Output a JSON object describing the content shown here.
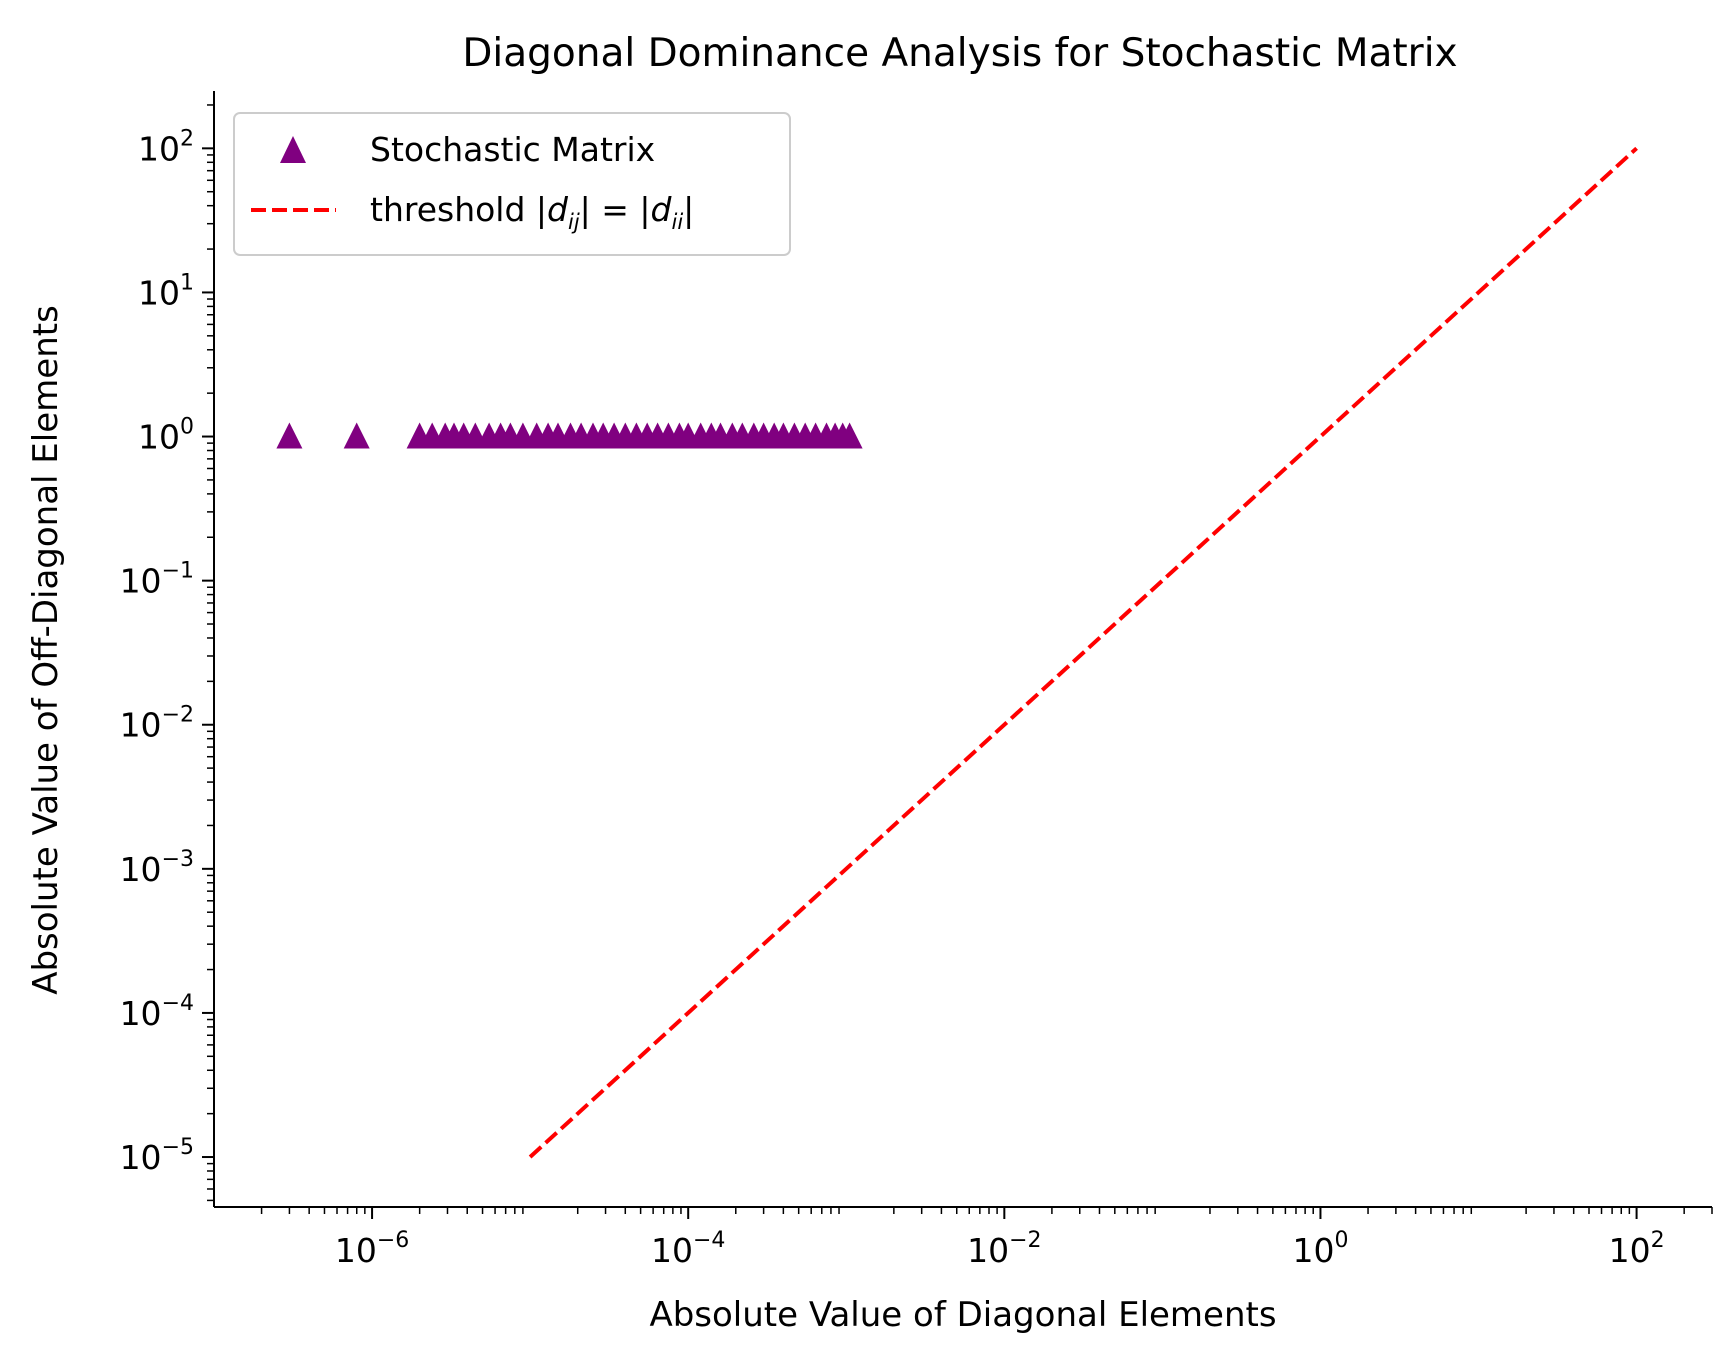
{
  "chart_data": {
    "type": "scatter",
    "title": "Diagonal Dominance Analysis for Stochastic Matrix",
    "xlabel": "Absolute Value of Diagonal Elements",
    "ylabel": "Absolute Value of Off-Diagonal Elements",
    "x_scale": "log",
    "y_scale": "log",
    "xlim": [
      1e-07,
      300
    ],
    "ylim": [
      4.5e-06,
      250
    ],
    "x_ticks": [
      {
        "value": 1e-06,
        "base": "10",
        "exp": "−6"
      },
      {
        "value": 0.0001,
        "base": "10",
        "exp": "−4"
      },
      {
        "value": 0.01,
        "base": "10",
        "exp": "−2"
      },
      {
        "value": 1,
        "base": "10",
        "exp": "0"
      },
      {
        "value": 100,
        "base": "10",
        "exp": "2"
      }
    ],
    "y_ticks": [
      {
        "value": 1e-05,
        "base": "10",
        "exp": "−5"
      },
      {
        "value": 0.0001,
        "base": "10",
        "exp": "−4"
      },
      {
        "value": 0.001,
        "base": "10",
        "exp": "−3"
      },
      {
        "value": 0.01,
        "base": "10",
        "exp": "−2"
      },
      {
        "value": 0.1,
        "base": "10",
        "exp": "−1"
      },
      {
        "value": 1,
        "base": "10",
        "exp": "0"
      },
      {
        "value": 10,
        "base": "10",
        "exp": "1"
      },
      {
        "value": 100,
        "base": "10",
        "exp": "2"
      }
    ],
    "legend_position": "top-left",
    "grid": false,
    "series": [
      {
        "name": "Stochastic Matrix",
        "kind": "scatter",
        "marker": "triangle",
        "color": "#800080",
        "x": [
          3e-07,
          8e-07,
          2e-06,
          2.4e-06,
          2.9e-06,
          3.3e-06,
          3.8e-06,
          4.5e-06,
          5.5e-06,
          6.5e-06,
          7.5e-06,
          9e-06,
          1.1e-05,
          1.3e-05,
          1.5e-05,
          1.8e-05,
          2.1e-05,
          2.5e-05,
          2.9e-05,
          3.4e-05,
          4e-05,
          4.7e-05,
          5.5e-05,
          6.4e-05,
          7.5e-05,
          8.8e-05,
          0.0001,
          0.00012,
          0.00014,
          0.00016,
          0.00019,
          0.00022,
          0.00026,
          0.0003,
          0.00035,
          0.0004,
          0.00047,
          0.00055,
          0.00064,
          0.00075,
          0.00085,
          0.00095,
          0.00105
        ],
        "y": [
          1,
          1,
          1,
          1,
          1,
          1,
          1,
          1,
          1,
          1,
          1,
          1,
          1,
          1,
          1,
          1,
          1,
          1,
          1,
          1,
          1,
          1,
          1,
          1,
          1,
          1,
          1,
          1,
          1,
          1,
          1,
          1,
          1,
          1,
          1,
          1,
          1,
          1,
          1,
          1,
          1,
          1,
          1
        ]
      },
      {
        "name_parts": {
          "prefix": "threshold |",
          "d1": "d",
          "s1": "ij",
          "mid": "| = |",
          "d2": "d",
          "s2": "ii",
          "suffix": "|"
        },
        "kind": "line",
        "style": "dashed",
        "color": "#ff0000",
        "x": [
          1e-05,
          100
        ],
        "y": [
          1e-05,
          100
        ]
      }
    ]
  }
}
